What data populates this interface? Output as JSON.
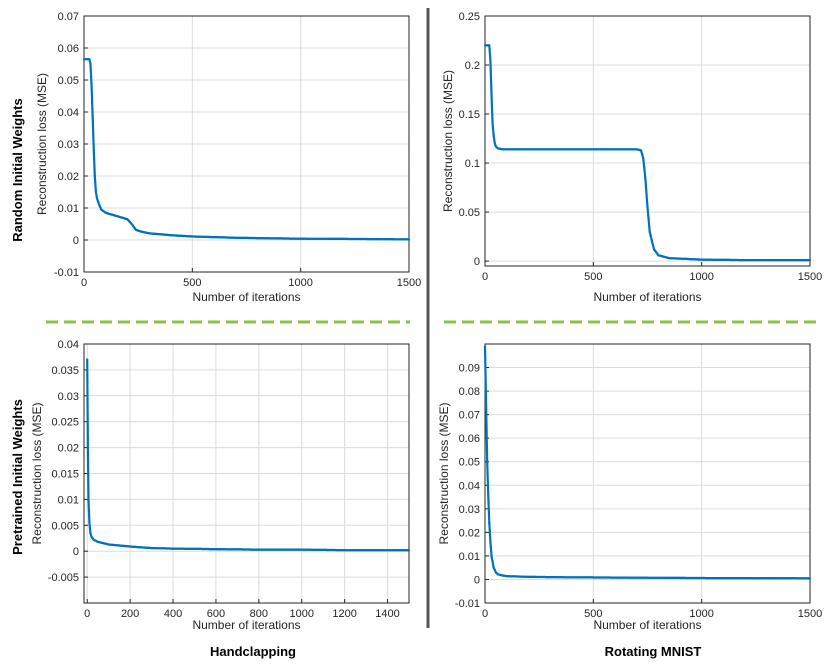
{
  "colors": {
    "series": "#0072bd",
    "grid": "#dcdcdc",
    "axis": "#262626",
    "separator_vertical": "#555555",
    "separator_dashed": "#8ac43f"
  },
  "row_labels": [
    "Random Initial Weights",
    "Pretrained Initial Weights"
  ],
  "column_labels": [
    "Handclapping",
    "Rotating MNIST"
  ],
  "chart_data": [
    {
      "type": "line",
      "row": "Random Initial Weights",
      "column": "Handclapping",
      "xlabel": "Number of iterations",
      "ylabel": "Reconstruction loss (MSE)",
      "xlim": [
        0,
        1500
      ],
      "ylim": [
        -0.01,
        0.07
      ],
      "xticks": [
        0,
        500,
        1000,
        1500
      ],
      "xtick_labels": [
        "0",
        "500",
        "1000",
        "1500"
      ],
      "yticks": [
        -0.01,
        0,
        0.01,
        0.02,
        0.03,
        0.04,
        0.05,
        0.06,
        0.07
      ],
      "ytick_labels": [
        "-0.01",
        "0",
        "0.01",
        "0.02",
        "0.03",
        "0.04",
        "0.05",
        "0.06",
        "0.07"
      ],
      "series": [
        {
          "name": "loss",
          "x": [
            0,
            15,
            25,
            30,
            35,
            40,
            45,
            50,
            55,
            60,
            70,
            80,
            100,
            150,
            200,
            220,
            240,
            260,
            300,
            400,
            500,
            700,
            1000,
            1300,
            1500
          ],
          "y": [
            0.0565,
            0.0565,
            0.0565,
            0.055,
            0.048,
            0.038,
            0.028,
            0.02,
            0.015,
            0.013,
            0.011,
            0.0095,
            0.0085,
            0.0075,
            0.0065,
            0.005,
            0.0032,
            0.0027,
            0.0021,
            0.0015,
            0.0011,
            0.0007,
            0.0004,
            0.0003,
            0.0002
          ]
        }
      ]
    },
    {
      "type": "line",
      "row": "Random Initial Weights",
      "column": "Rotating MNIST",
      "xlabel": "Number of iterations",
      "ylabel": "Reconstruction loss (MSE)",
      "xlim": [
        0,
        1500
      ],
      "ylim": [
        -0.005,
        0.25
      ],
      "xticks": [
        0,
        500,
        1000,
        1500
      ],
      "xtick_labels": [
        "0",
        "500",
        "1000",
        "1500"
      ],
      "yticks": [
        0,
        0.05,
        0.1,
        0.15,
        0.2,
        0.25
      ],
      "ytick_labels": [
        "0",
        "0.05",
        "0.1",
        "0.15",
        "0.2",
        "0.25"
      ],
      "series": [
        {
          "name": "loss",
          "x": [
            0,
            20,
            25,
            30,
            35,
            40,
            45,
            50,
            60,
            80,
            100,
            200,
            400,
            600,
            700,
            720,
            730,
            740,
            750,
            760,
            780,
            800,
            850,
            1000,
            1200,
            1500
          ],
          "y": [
            0.22,
            0.22,
            0.205,
            0.17,
            0.14,
            0.128,
            0.12,
            0.117,
            0.115,
            0.114,
            0.114,
            0.114,
            0.114,
            0.114,
            0.114,
            0.113,
            0.105,
            0.085,
            0.055,
            0.03,
            0.012,
            0.006,
            0.003,
            0.0015,
            0.001,
            0.001
          ]
        }
      ]
    },
    {
      "type": "line",
      "row": "Pretrained Initial Weights",
      "column": "Handclapping",
      "xlabel": "Number of iterations",
      "ylabel": "Reconstruction loss (MSE)",
      "xlim": [
        -15,
        1500
      ],
      "ylim": [
        -0.01,
        0.04
      ],
      "xticks": [
        0,
        200,
        400,
        600,
        800,
        1000,
        1200,
        1400
      ],
      "xtick_labels": [
        "0",
        "200",
        "400",
        "600",
        "800",
        "1000",
        "1200",
        "1400"
      ],
      "yticks": [
        -0.005,
        0,
        0.005,
        0.01,
        0.015,
        0.02,
        0.025,
        0.03,
        0.035,
        0.04
      ],
      "ytick_labels": [
        "-0.005",
        "0",
        "0.005",
        "0.01",
        "0.015",
        "0.02",
        "0.025",
        "0.03",
        "0.035",
        "0.04"
      ],
      "series": [
        {
          "name": "loss",
          "x": [
            0,
            3,
            6,
            10,
            15,
            20,
            30,
            50,
            100,
            200,
            300,
            400,
            600,
            800,
            1000,
            1200,
            1400,
            1500
          ],
          "y": [
            0.037,
            0.02,
            0.01,
            0.0055,
            0.0035,
            0.0028,
            0.0022,
            0.0018,
            0.0013,
            0.0009,
            0.0006,
            0.0005,
            0.0004,
            0.0003,
            0.0003,
            0.0002,
            0.0002,
            0.0002
          ]
        }
      ]
    },
    {
      "type": "line",
      "row": "Pretrained Initial Weights",
      "column": "Rotating MNIST",
      "xlabel": "Number of iterations",
      "ylabel": "Reconstruction loss (MSE)",
      "xlim": [
        0,
        1500
      ],
      "ylim": [
        -0.01,
        0.1
      ],
      "xticks": [
        0,
        500,
        1000,
        1500
      ],
      "xtick_labels": [
        "0",
        "500",
        "1000",
        "1500"
      ],
      "yticks": [
        -0.01,
        0,
        0.01,
        0.02,
        0.03,
        0.04,
        0.05,
        0.06,
        0.07,
        0.08,
        0.09
      ],
      "ytick_labels": [
        "-0.01",
        "0",
        "0.01",
        "0.02",
        "0.03",
        "0.04",
        "0.05",
        "0.06",
        "0.07",
        "0.08",
        "0.09"
      ],
      "series": [
        {
          "name": "loss",
          "x": [
            0,
            3,
            6,
            10,
            15,
            20,
            25,
            30,
            40,
            50,
            60,
            80,
            100,
            200,
            400,
            600,
            1000,
            1500
          ],
          "y": [
            0.099,
            0.085,
            0.07,
            0.05,
            0.035,
            0.024,
            0.016,
            0.01,
            0.005,
            0.003,
            0.0022,
            0.0017,
            0.0014,
            0.0011,
            0.0009,
            0.0008,
            0.0006,
            0.0005
          ]
        }
      ]
    }
  ]
}
